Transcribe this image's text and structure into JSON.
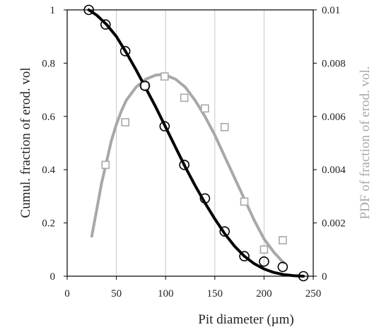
{
  "chart_data": {
    "type": "line",
    "title": "",
    "xlabel": "Pit diameter (µm)",
    "ylabel": "Cumul. fraction of erod. vol",
    "y2label": "PDF of fraction of erod. vol.",
    "xlim": [
      0,
      250
    ],
    "ylim": [
      0,
      1
    ],
    "y2lim": [
      0,
      0.01
    ],
    "grid": "vertical",
    "x_ticks": [
      "0",
      "50",
      "100",
      "150",
      "200",
      "250"
    ],
    "y_ticks": [
      "0",
      "0.2",
      "0.4",
      "0.6",
      "0.8",
      "1"
    ],
    "y2_ticks": [
      "0",
      "0.002",
      "0.004",
      "0.006",
      "0.008",
      "0.01"
    ],
    "colors": {
      "cumulative": "#000000",
      "pdf": "#a8a8a8",
      "grid": "#c8c8c8",
      "axis": "#000000"
    },
    "series": [
      {
        "marker": "circle",
        "axis": "left",
        "x": [
          22,
          39,
          59,
          79,
          99,
          119,
          140,
          160,
          180,
          200,
          219,
          240
        ],
        "y": [
          1.0,
          0.945,
          0.845,
          0.715,
          0.563,
          0.418,
          0.292,
          0.168,
          0.075,
          0.055,
          0.035,
          0.0
        ]
      },
      {
        "line": "fit",
        "axis": "left",
        "x": [
          22,
          30,
          40,
          50,
          60,
          70,
          80,
          90,
          100,
          110,
          120,
          130,
          140,
          150,
          160,
          170,
          180,
          190,
          200,
          210,
          220,
          230,
          240
        ],
        "y": [
          1.0,
          0.98,
          0.945,
          0.9,
          0.84,
          0.775,
          0.705,
          0.635,
          0.56,
          0.485,
          0.41,
          0.34,
          0.275,
          0.215,
          0.16,
          0.113,
          0.075,
          0.047,
          0.027,
          0.014,
          0.006,
          0.002,
          0.0
        ]
      },
      {
        "marker": "square",
        "axis": "right",
        "x": [
          39,
          59,
          79,
          99,
          119,
          140,
          160,
          180,
          200,
          219
        ],
        "y": [
          0.00418,
          0.00578,
          0.00715,
          0.0075,
          0.0067,
          0.0063,
          0.0056,
          0.0028,
          0.001,
          0.00135
        ]
      },
      {
        "line": "fit",
        "axis": "right",
        "x": [
          25,
          30,
          35,
          40,
          45,
          50,
          55,
          60,
          70,
          80,
          90,
          95,
          100,
          110,
          120,
          130,
          140,
          150,
          160,
          170,
          180,
          190,
          200,
          210,
          220
        ],
        "y": [
          0.0015,
          0.0025,
          0.0035,
          0.0043,
          0.0051,
          0.0057,
          0.0062,
          0.0066,
          0.0071,
          0.0074,
          0.00755,
          0.00757,
          0.00755,
          0.0074,
          0.0071,
          0.0066,
          0.006,
          0.0053,
          0.0045,
          0.0037,
          0.0029,
          0.0021,
          0.0014,
          0.0009,
          0.0005
        ]
      }
    ]
  }
}
